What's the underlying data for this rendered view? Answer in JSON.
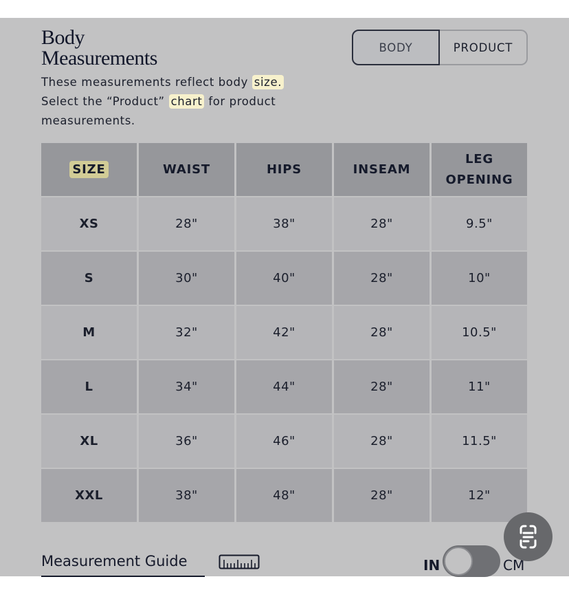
{
  "header": {
    "title_line1": "Body",
    "title_line2": "Measurements",
    "desc_part1": "These measurements reflect body ",
    "desc_hl1": "size.",
    "desc_part2": "Select the “Product” ",
    "desc_hl2": "chart",
    "desc_part3": " for product measurements."
  },
  "view_toggle": {
    "body_label": "BODY",
    "product_label": "PRODUCT",
    "selected": "BODY"
  },
  "table": {
    "columns": [
      "SIZE",
      "WAIST",
      "HIPS",
      "INSEAM",
      "LEG OPENING"
    ],
    "rows": [
      [
        "XS",
        "28\"",
        "38\"",
        "28\"",
        "9.5\""
      ],
      [
        "S",
        "30\"",
        "40\"",
        "28\"",
        "10\""
      ],
      [
        "M",
        "32\"",
        "42\"",
        "28\"",
        "10.5\""
      ],
      [
        "L",
        "34\"",
        "44\"",
        "28\"",
        "11\""
      ],
      [
        "XL",
        "36\"",
        "46\"",
        "28\"",
        "11.5\""
      ],
      [
        "XXL",
        "38\"",
        "48\"",
        "28\"",
        "12\""
      ]
    ]
  },
  "footer": {
    "guide_label": "Measurement Guide",
    "guide_icon": "ruler-icon",
    "unit_left": "IN",
    "unit_right": "CM",
    "unit_selected": "IN"
  },
  "fab": {
    "icon": "scan-text-icon"
  }
}
